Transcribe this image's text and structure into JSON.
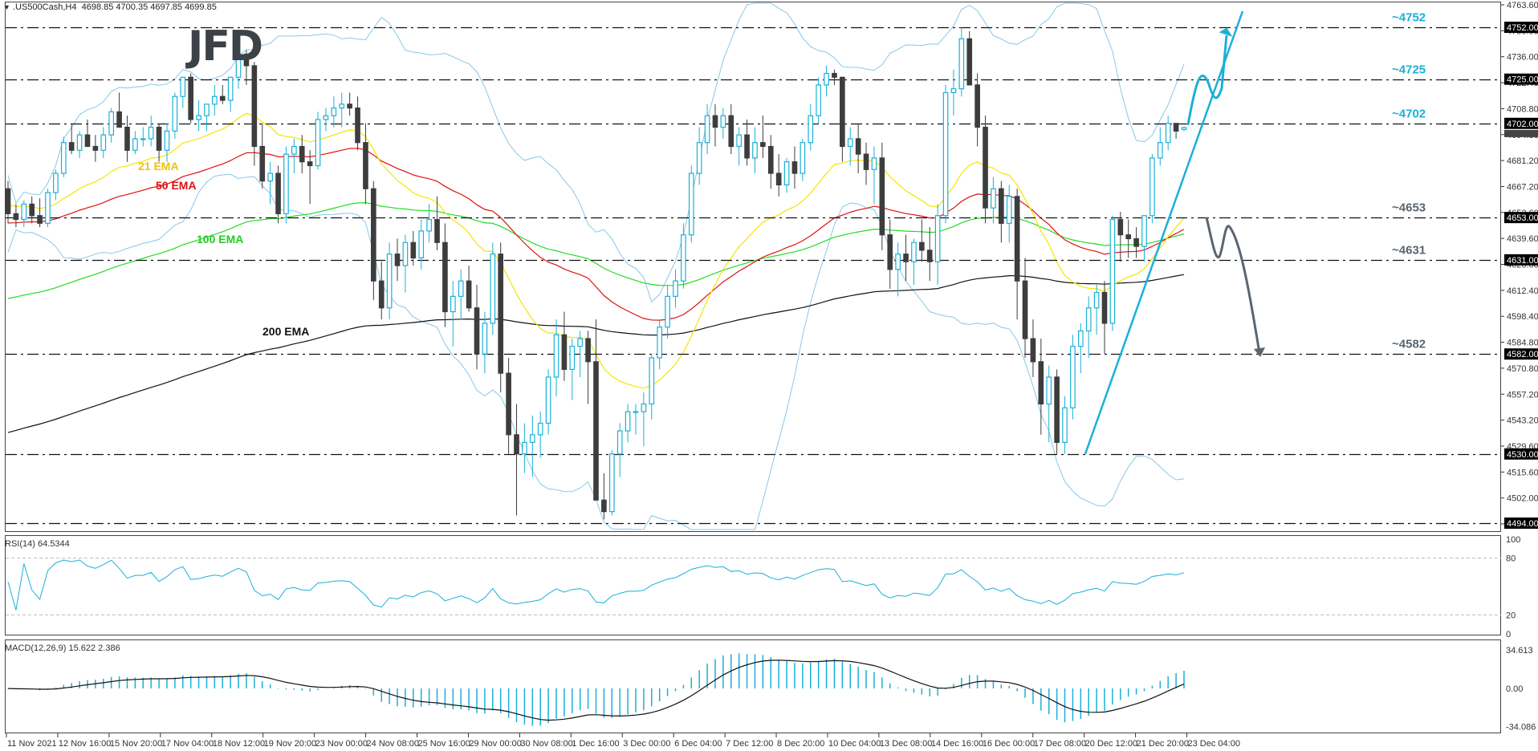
{
  "header": {
    "symbol": ".US500Cash,H4",
    "ohlc": "4698.85 4700.35 4697.85 4699.85"
  },
  "logo": {
    "text": "JFD"
  },
  "chart_data": [
    {
      "type": "candlestick",
      "title": ".US500Cash,H4",
      "panel": "price",
      "y_axis_ticks": [
        "4763.60",
        "4750.00",
        "4736.00",
        "4722.40",
        "4708.80",
        "4694.80",
        "4681.20",
        "4667.20",
        "4653.60",
        "4639.60",
        "4626.00",
        "4612.40",
        "4598.40",
        "4584.80",
        "4570.80",
        "4557.20",
        "4543.20",
        "4529.60",
        "4515.60",
        "4502.00",
        "4488.40"
      ],
      "x_axis_ticks": [
        "11 Nov 2021",
        "12 Nov 16:00",
        "15 Nov 20:00",
        "17 Nov 04:00",
        "18 Nov 12:00",
        "19 Nov 20:00",
        "23 Nov 00:00",
        "24 Nov 08:00",
        "25 Nov 16:00",
        "29 Nov 00:00",
        "30 Nov 08:00",
        "1 Dec 16:00",
        "3 Dec 00:00",
        "6 Dec 04:00",
        "7 Dec 12:00",
        "8 Dec 20:00",
        "10 Dec 04:00",
        "13 Dec 08:00",
        "14 Dec 16:00",
        "16 Dec 00:00",
        "17 Dec 08:00",
        "20 Dec 12:00",
        "21 Dec 20:00",
        "23 Dec 04:00"
      ],
      "ylim": [
        4488.4,
        4763.6
      ],
      "horizontal_levels": [
        {
          "value": 4752,
          "label": "~4752",
          "tag": "4752.00",
          "color": "#1ab0d8"
        },
        {
          "value": 4725,
          "label": "~4725",
          "tag": "4725.00",
          "color": "#1ab0d8"
        },
        {
          "value": 4702,
          "label": "~4702",
          "tag": "4702.00",
          "color": "#1ab0d8"
        },
        {
          "value": 4653,
          "label": "~4653",
          "tag": "4653.00",
          "color": "#5a6570"
        },
        {
          "value": 4631,
          "label": "~4631",
          "tag": "4631.00",
          "color": "#5a6570"
        },
        {
          "value": 4582,
          "label": "~4582",
          "tag": "4582.00",
          "color": "#5a6570"
        },
        {
          "value": 4530,
          "label": "",
          "tag": "4530.00",
          "color": "#5a6570"
        },
        {
          "value": 4494,
          "label": "",
          "tag": "4494.00",
          "color": "#5a6570"
        }
      ],
      "current_price_tag": "4699.85",
      "indicators": [
        {
          "name": "21 EMA",
          "color": "#f5e600",
          "label_color": "#f2c200"
        },
        {
          "name": "50 EMA",
          "color": "#e01010",
          "label_color": "#e01010"
        },
        {
          "name": "100 EMA",
          "color": "#22dd22",
          "label_color": "#22cc22"
        },
        {
          "name": "200 EMA",
          "color": "#111111",
          "label_color": "#111111"
        },
        {
          "name": "Bollinger Bands",
          "color": "#87c8ea"
        }
      ],
      "candles_ohlc": [
        [
          4668,
          4672,
          4650,
          4655
        ],
        [
          4655,
          4660,
          4648,
          4652
        ],
        [
          4652,
          4662,
          4648,
          4660
        ],
        [
          4660,
          4664,
          4650,
          4654
        ],
        [
          4654,
          4663,
          4648,
          4650
        ],
        [
          4650,
          4668,
          4648,
          4666
        ],
        [
          4666,
          4678,
          4662,
          4676
        ],
        [
          4676,
          4695,
          4674,
          4692
        ],
        [
          4692,
          4702,
          4686,
          4688
        ],
        [
          4688,
          4698,
          4684,
          4696
        ],
        [
          4696,
          4704,
          4690,
          4690
        ],
        [
          4690,
          4696,
          4682,
          4688
        ],
        [
          4688,
          4700,
          4684,
          4696
        ],
        [
          4696,
          4710,
          4692,
          4708
        ],
        [
          4708,
          4718,
          4700,
          4700
        ],
        [
          4700,
          4706,
          4682,
          4688
        ],
        [
          4688,
          4698,
          4686,
          4694
        ],
        [
          4694,
          4700,
          4690,
          4694
        ],
        [
          4694,
          4706,
          4690,
          4700
        ],
        [
          4700,
          4702,
          4682,
          4688
        ],
        [
          4688,
          4702,
          4682,
          4698
        ],
        [
          4698,
          4718,
          4694,
          4716
        ],
        [
          4716,
          4726,
          4710,
          4726
        ],
        [
          4726,
          4728,
          4702,
          4704
        ],
        [
          4704,
          4714,
          4698,
          4706
        ],
        [
          4706,
          4712,
          4698,
          4712
        ],
        [
          4712,
          4722,
          4706,
          4716
        ],
        [
          4716,
          4722,
          4712,
          4714
        ],
        [
          4714,
          4726,
          4708,
          4726
        ],
        [
          4726,
          4742,
          4720,
          4738
        ],
        [
          4738,
          4740,
          4722,
          4732
        ],
        [
          4732,
          4734,
          4680,
          4690
        ],
        [
          4690,
          4702,
          4668,
          4672
        ],
        [
          4672,
          4682,
          4660,
          4676
        ],
        [
          4676,
          4680,
          4650,
          4655
        ],
        [
          4655,
          4690,
          4650,
          4686
        ],
        [
          4686,
          4694,
          4676,
          4690
        ],
        [
          4690,
          4696,
          4676,
          4682
        ],
        [
          4682,
          4688,
          4660,
          4680
        ],
        [
          4680,
          4708,
          4678,
          4704
        ],
        [
          4704,
          4710,
          4698,
          4706
        ],
        [
          4706,
          4716,
          4700,
          4710
        ],
        [
          4710,
          4718,
          4700,
          4712
        ],
        [
          4712,
          4718,
          4706,
          4710
        ],
        [
          4710,
          4716,
          4688,
          4692
        ],
        [
          4692,
          4702,
          4660,
          4668
        ],
        [
          4668,
          4672,
          4610,
          4620
        ],
        [
          4620,
          4630,
          4600,
          4606
        ],
        [
          4606,
          4640,
          4600,
          4634
        ],
        [
          4634,
          4642,
          4620,
          4628
        ],
        [
          4628,
          4644,
          4614,
          4640
        ],
        [
          4640,
          4646,
          4628,
          4632
        ],
        [
          4632,
          4652,
          4626,
          4646
        ],
        [
          4646,
          4660,
          4640,
          4652
        ],
        [
          4652,
          4664,
          4636,
          4640
        ],
        [
          4640,
          4650,
          4596,
          4604
        ],
        [
          4604,
          4620,
          4586,
          4612
        ],
        [
          4612,
          4626,
          4600,
          4620
        ],
        [
          4620,
          4628,
          4604,
          4606
        ],
        [
          4606,
          4618,
          4574,
          4582
        ],
        [
          4582,
          4604,
          4572,
          4598
        ],
        [
          4598,
          4640,
          4592,
          4634
        ],
        [
          4634,
          4640,
          4562,
          4572
        ],
        [
          4572,
          4580,
          4530,
          4540
        ],
        [
          4540,
          4556,
          4498,
          4530
        ],
        [
          4530,
          4546,
          4520,
          4536
        ],
        [
          4536,
          4550,
          4518,
          4540
        ],
        [
          4540,
          4552,
          4528,
          4546
        ],
        [
          4546,
          4574,
          4540,
          4570
        ],
        [
          4570,
          4600,
          4560,
          4592
        ],
        [
          4592,
          4604,
          4568,
          4574
        ],
        [
          4574,
          4590,
          4558,
          4586
        ],
        [
          4586,
          4594,
          4570,
          4590
        ],
        [
          4590,
          4594,
          4556,
          4578
        ],
        [
          4578,
          4600,
          4540,
          4506
        ],
        [
          4506,
          4520,
          4496,
          4500
        ],
        [
          4500,
          4532,
          4498,
          4530
        ],
        [
          4530,
          4546,
          4518,
          4542
        ],
        [
          4542,
          4556,
          4536,
          4552
        ],
        [
          4552,
          4556,
          4540,
          4552
        ],
        [
          4552,
          4562,
          4534,
          4556
        ],
        [
          4556,
          4582,
          4548,
          4580
        ],
        [
          4580,
          4600,
          4574,
          4596
        ],
        [
          4596,
          4618,
          4590,
          4612
        ],
        [
          4612,
          4626,
          4606,
          4620
        ],
        [
          4620,
          4650,
          4616,
          4644
        ],
        [
          4644,
          4680,
          4640,
          4676
        ],
        [
          4676,
          4700,
          4670,
          4692
        ],
        [
          4692,
          4712,
          4686,
          4706
        ],
        [
          4706,
          4712,
          4690,
          4700
        ],
        [
          4700,
          4710,
          4694,
          4706
        ],
        [
          4706,
          4712,
          4686,
          4690
        ],
        [
          4690,
          4700,
          4680,
          4696
        ],
        [
          4696,
          4704,
          4680,
          4684
        ],
        [
          4684,
          4700,
          4676,
          4692
        ],
        [
          4692,
          4706,
          4684,
          4690
        ],
        [
          4690,
          4696,
          4668,
          4676
        ],
        [
          4676,
          4686,
          4664,
          4670
        ],
        [
          4670,
          4684,
          4666,
          4682
        ],
        [
          4682,
          4690,
          4668,
          4676
        ],
        [
          4676,
          4694,
          4672,
          4692
        ],
        [
          4692,
          4712,
          4688,
          4706
        ],
        [
          4706,
          4726,
          4702,
          4722
        ],
        [
          4722,
          4732,
          4716,
          4728
        ],
        [
          4728,
          4730,
          4722,
          4726
        ],
        [
          4726,
          4726,
          4682,
          4690
        ],
        [
          4690,
          4700,
          4680,
          4694
        ],
        [
          4694,
          4702,
          4676,
          4686
        ],
        [
          4686,
          4692,
          4670,
          4678
        ],
        [
          4678,
          4690,
          4660,
          4684
        ],
        [
          4684,
          4692,
          4636,
          4644
        ],
        [
          4644,
          4652,
          4616,
          4626
        ],
        [
          4626,
          4640,
          4612,
          4634
        ],
        [
          4634,
          4644,
          4620,
          4630
        ],
        [
          4630,
          4642,
          4618,
          4640
        ],
        [
          4640,
          4652,
          4630,
          4636
        ],
        [
          4636,
          4648,
          4620,
          4630
        ],
        [
          4630,
          4660,
          4618,
          4654
        ],
        [
          4654,
          4722,
          4650,
          4718
        ],
        [
          4718,
          4730,
          4706,
          4720
        ],
        [
          4720,
          4752,
          4716,
          4746
        ],
        [
          4746,
          4750,
          4728,
          4722
        ],
        [
          4722,
          4728,
          4690,
          4700
        ],
        [
          4700,
          4706,
          4650,
          4658
        ],
        [
          4658,
          4674,
          4650,
          4668
        ],
        [
          4668,
          4672,
          4640,
          4650
        ],
        [
          4650,
          4670,
          4640,
          4664
        ],
        [
          4664,
          4668,
          4600,
          4620
        ],
        [
          4620,
          4632,
          4580,
          4590
        ],
        [
          4590,
          4600,
          4570,
          4578
        ],
        [
          4578,
          4590,
          4540,
          4556
        ],
        [
          4556,
          4576,
          4536,
          4570
        ],
        [
          4570,
          4574,
          4530,
          4536
        ],
        [
          4536,
          4560,
          4530,
          4554
        ],
        [
          4554,
          4592,
          4548,
          4586
        ],
        [
          4586,
          4598,
          4572,
          4594
        ],
        [
          4594,
          4612,
          4580,
          4606
        ],
        [
          4606,
          4618,
          4592,
          4614
        ],
        [
          4614,
          4620,
          4582,
          4598
        ],
        [
          4598,
          4654,
          4594,
          4652
        ],
        [
          4652,
          4656,
          4630,
          4644
        ],
        [
          4644,
          4652,
          4632,
          4642
        ],
        [
          4642,
          4648,
          4632,
          4638
        ],
        [
          4638,
          4652,
          4630,
          4654
        ],
        [
          4654,
          4686,
          4650,
          4684
        ],
        [
          4684,
          4700,
          4680,
          4692
        ],
        [
          4692,
          4706,
          4688,
          4702
        ],
        [
          4702,
          4702,
          4694,
          4698
        ],
        [
          4698.85,
          4700.35,
          4697.85,
          4699.85
        ]
      ]
    },
    {
      "type": "line",
      "panel": "RSI",
      "title": "RSI(14) 64.5344",
      "indicator": "RSI(14)",
      "value": 64.5344,
      "ylim": [
        0,
        100
      ],
      "levels": [
        80,
        20
      ],
      "y_axis_ticks": [
        "100",
        "80",
        "20",
        "0"
      ]
    },
    {
      "type": "bar+line",
      "panel": "MACD",
      "title": "MACD(12,26,9) 15.622 2.386",
      "indicator": "MACD(12,26,9)",
      "macd": 15.622,
      "signal": 2.386,
      "ylim": [
        -34.086,
        34.613
      ],
      "y_axis_ticks": [
        "34.613",
        "0.00",
        "-34.086"
      ]
    }
  ],
  "annotations": {
    "ema_labels": [
      "21 EMA",
      "50 EMA",
      "100 EMA",
      "200 EMA"
    ],
    "bullish_path_color": "#1ab0d8",
    "bearish_path_color": "#5a6570",
    "trendline_color": "#1ab0d8"
  },
  "rsi": {
    "label": "RSI(14) 64.5344"
  },
  "macd": {
    "label": "MACD(12,26,9) 15.622 2.386"
  }
}
